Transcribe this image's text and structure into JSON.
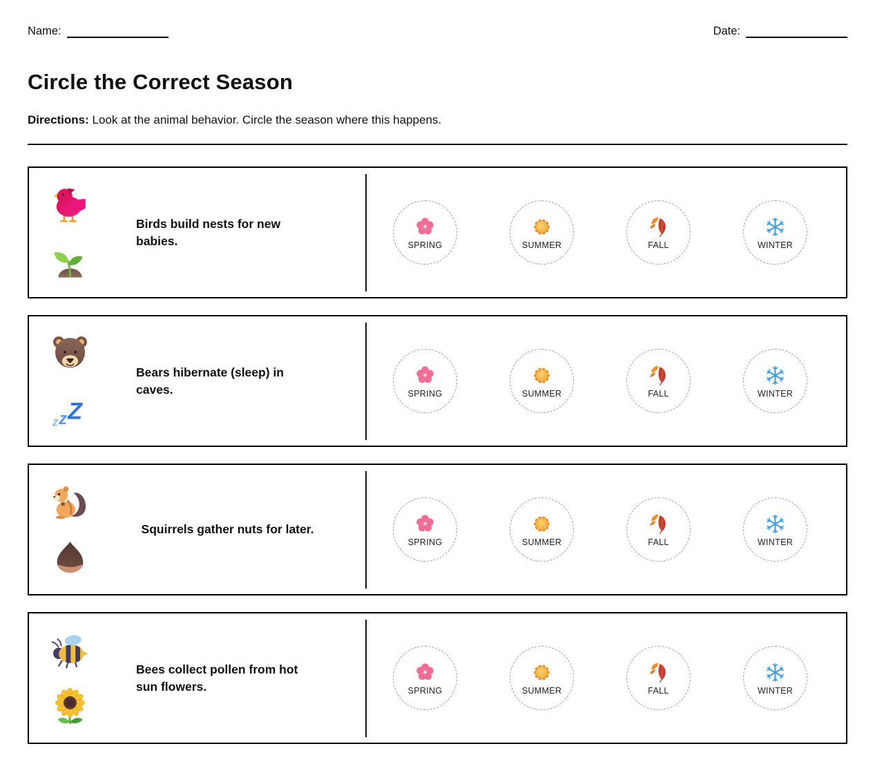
{
  "header": {
    "name_label": "Name:",
    "date_label": "Date:",
    "title": "Circle the Correct Season",
    "directions_label": "Directions:",
    "directions_text": "Look at the animal behavior. Circle the season where this happens."
  },
  "seasons": [
    {
      "label": "SPRING",
      "icon": "cherry-blossom-icon",
      "color": "#ef6d96"
    },
    {
      "label": "SUMMER",
      "icon": "sun-icon",
      "color": "#ef8d26"
    },
    {
      "label": "FALL",
      "icon": "fallen-leaves-icon",
      "color": "#c63d2c"
    },
    {
      "label": "WINTER",
      "icon": "snowflake-icon",
      "color": "#3b9fe8"
    }
  ],
  "rows": [
    {
      "icons": [
        "bird-icon",
        "seedling-icon"
      ],
      "prompt": "Birds build nests for new babies."
    },
    {
      "icons": [
        "bear-icon",
        "zzz-icon"
      ],
      "prompt": "Bears hibernate (sleep) in caves."
    },
    {
      "icons": [
        "squirrel-icon",
        "chestnut-icon"
      ],
      "prompt": "Squirrels gather nuts for later."
    },
    {
      "icons": [
        "bee-icon",
        "sunflower-icon"
      ],
      "prompt": "Bees collect pollen from hot sun flowers."
    }
  ],
  "colors": {
    "ink": "#000000",
    "text": "#111111",
    "dash": "#9aa0a6",
    "season_label": "#202124"
  }
}
